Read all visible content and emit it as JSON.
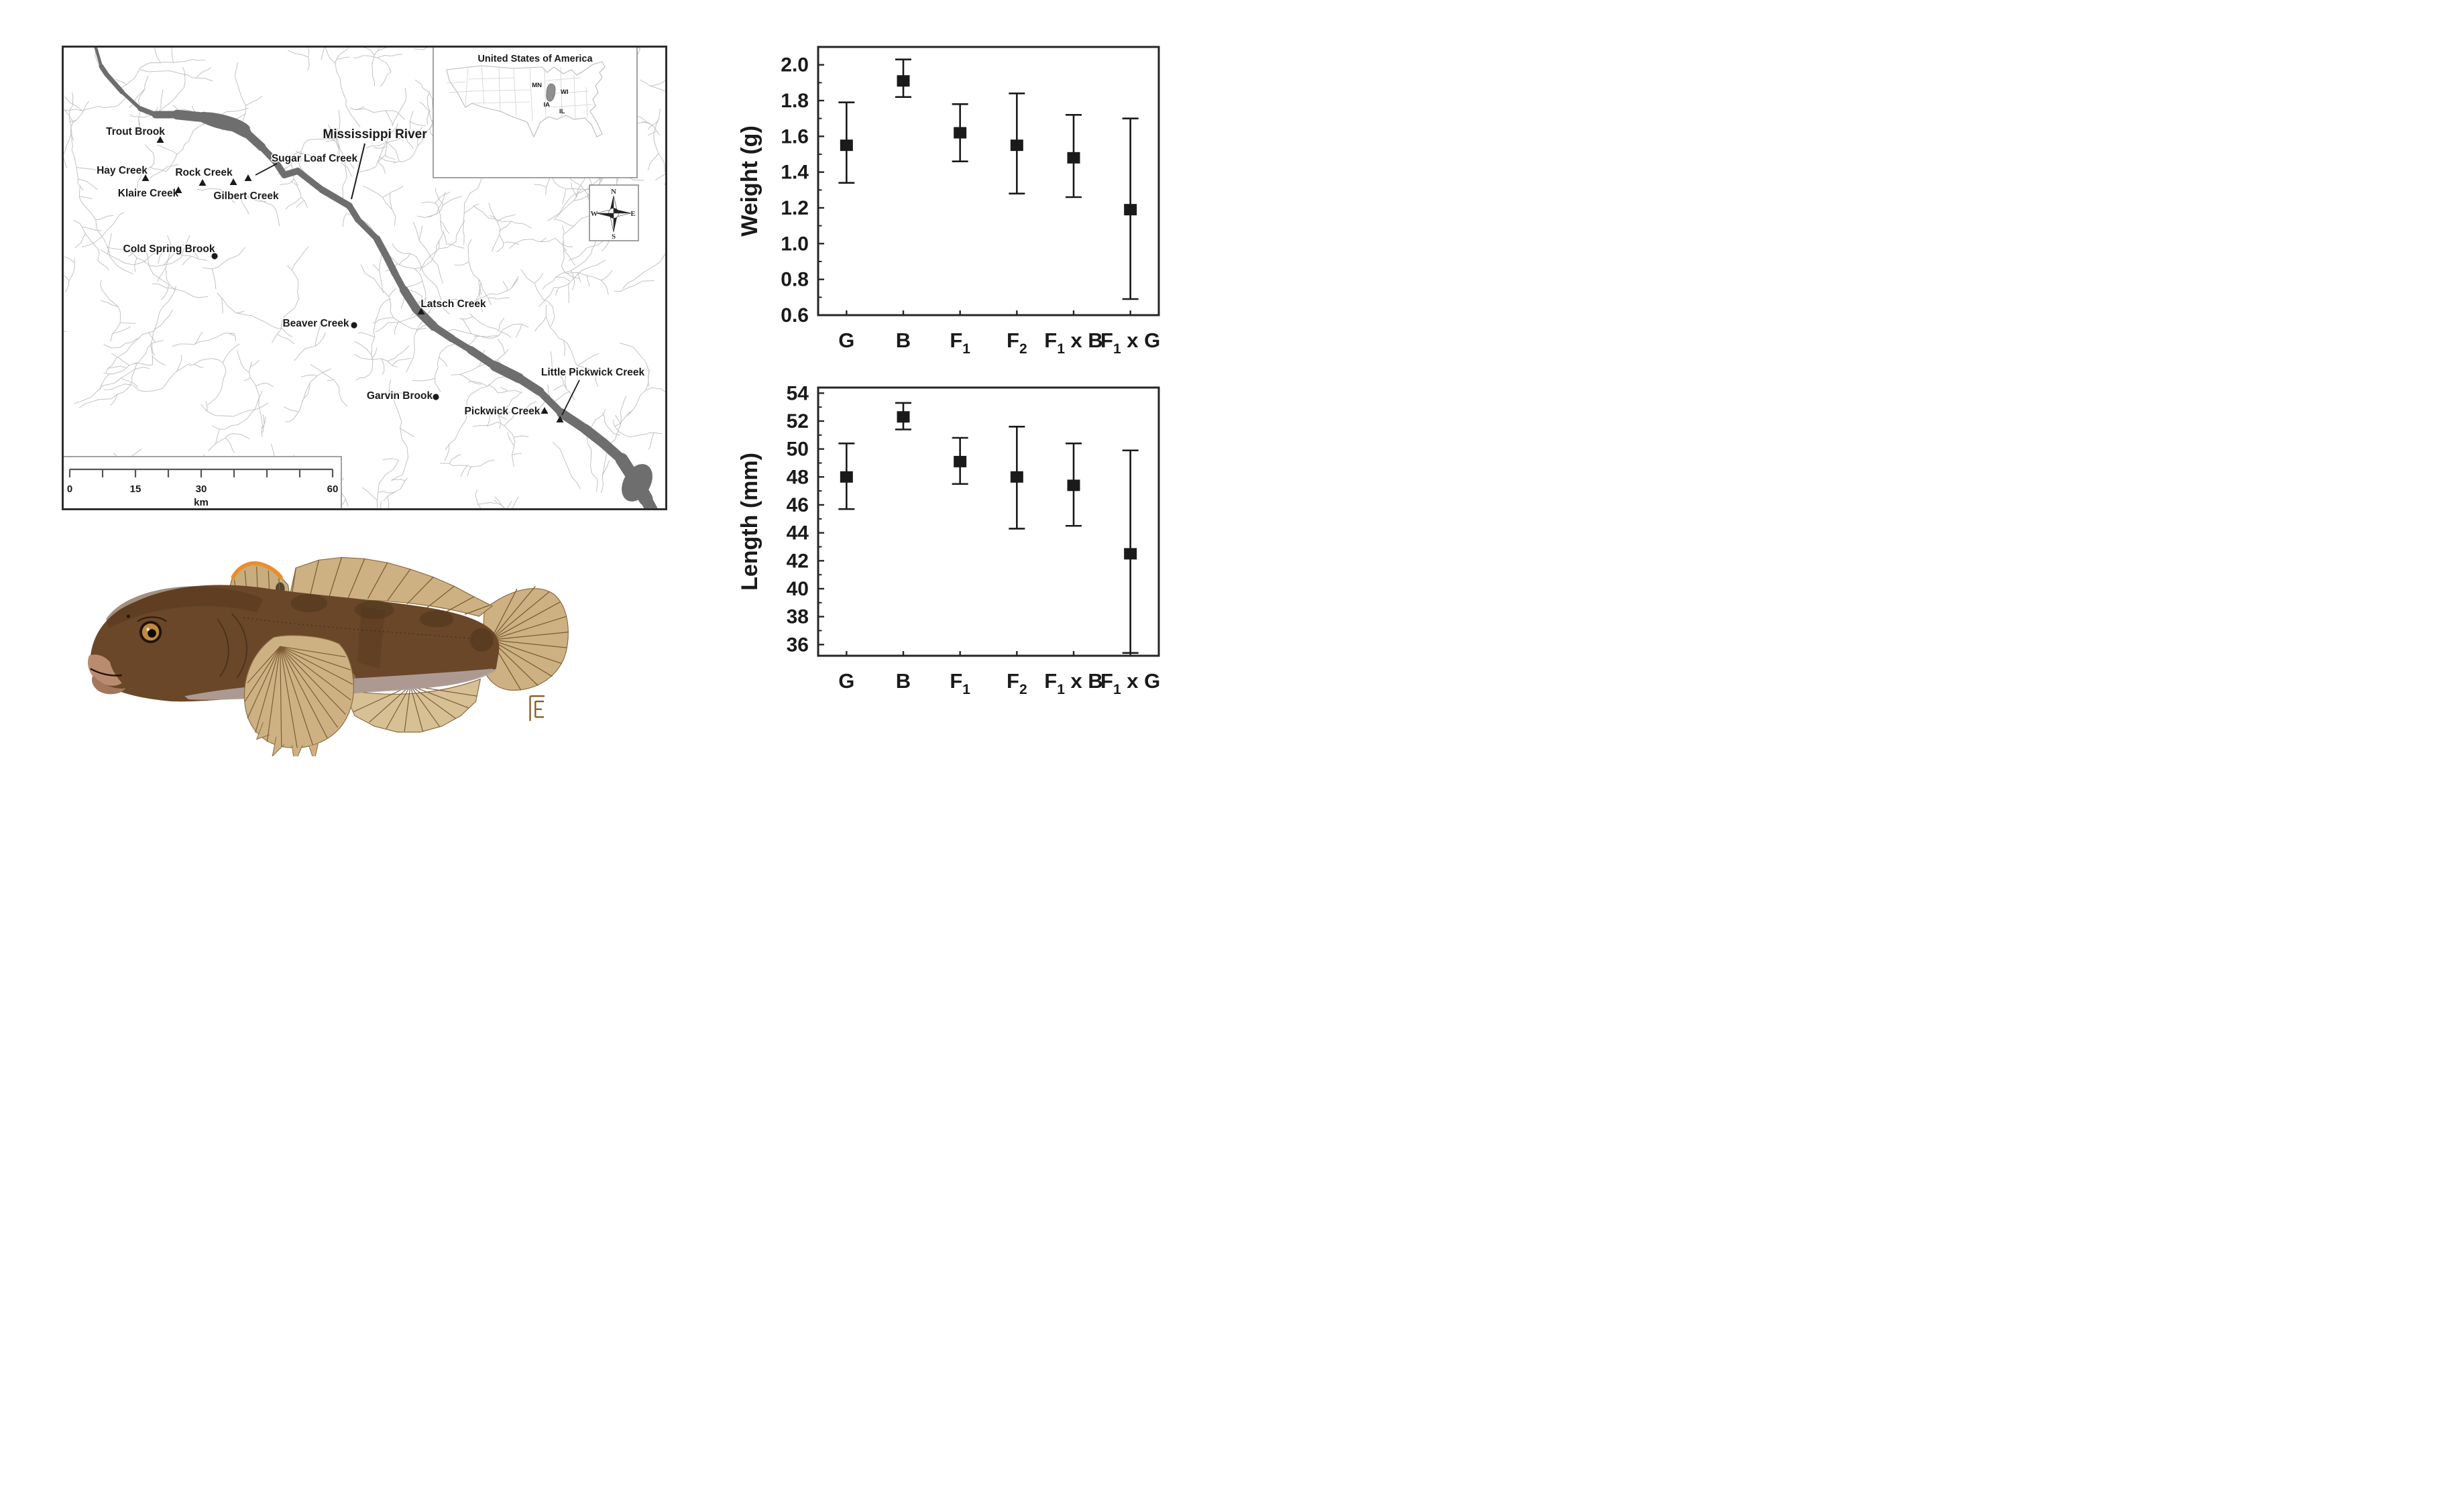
{
  "map": {
    "river_label": "Mississippi River",
    "sites": [
      {
        "name": "Trout Brook",
        "marker": "triangle"
      },
      {
        "name": "Hay Creek",
        "marker": "triangle"
      },
      {
        "name": "Rock Creek",
        "marker": "triangle"
      },
      {
        "name": "Sugar Loaf Creek",
        "marker": "triangle"
      },
      {
        "name": "Klaire Creek",
        "marker": "triangle"
      },
      {
        "name": "Gilbert Creek",
        "marker": "triangle"
      },
      {
        "name": "Cold Spring Brook",
        "marker": "circle"
      },
      {
        "name": "Latsch Creek",
        "marker": "triangle"
      },
      {
        "name": "Beaver Creek",
        "marker": "circle"
      },
      {
        "name": "Garvin Brook",
        "marker": "circle"
      },
      {
        "name": "Pickwick Creek",
        "marker": "triangle"
      },
      {
        "name": "Little Pickwick Creek",
        "marker": "triangle"
      }
    ],
    "inset": {
      "title": "United States of America",
      "states": [
        "MN",
        "WI",
        "IA",
        "IL"
      ],
      "highlight_color": "#8f8f8f"
    },
    "compass": {
      "n": "N",
      "e": "E",
      "s": "S",
      "w": "W"
    },
    "scale_bar": {
      "labels": [
        "0",
        "15",
        "30",
        "60"
      ],
      "unit": "km"
    },
    "colors": {
      "stream": "#c2c2c2",
      "river": "#6e6e6e",
      "marker": "#1a1a1a",
      "border": "#2e2e2e",
      "box_border": "#8a8a8a"
    }
  },
  "chart_data": [
    {
      "type": "scatter",
      "error_bars": true,
      "title": "",
      "xlabel": "",
      "ylabel": "Weight (g)",
      "ylim": [
        0.6,
        2.1
      ],
      "yticks": [
        0.6,
        0.8,
        1.0,
        1.2,
        1.4,
        1.6,
        1.8,
        2.0
      ],
      "ytick_decimals": 1,
      "minor_ticks": [
        0.7,
        0.9,
        1.1,
        1.3,
        1.5,
        1.7,
        1.9
      ],
      "categories": [
        {
          "base": "G",
          "sub": "",
          "rest": ""
        },
        {
          "base": "B",
          "sub": "",
          "rest": ""
        },
        {
          "base": "F",
          "sub": "1",
          "rest": ""
        },
        {
          "base": "F",
          "sub": "2",
          "rest": ""
        },
        {
          "base": "F",
          "sub": "1",
          "rest": " x B"
        },
        {
          "base": "F",
          "sub": "1",
          "rest": " x G"
        }
      ],
      "means": [
        1.55,
        1.91,
        1.62,
        1.55,
        1.48,
        1.19
      ],
      "err_low": [
        1.34,
        1.82,
        1.46,
        1.28,
        1.26,
        0.69
      ],
      "err_high": [
        1.79,
        2.03,
        1.78,
        1.84,
        1.72,
        1.7
      ],
      "legend": null,
      "grid": false
    },
    {
      "type": "scatter",
      "error_bars": true,
      "title": "",
      "xlabel": "",
      "ylabel": "Length (mm)",
      "ylim": [
        35.2,
        54.4
      ],
      "yticks": [
        36,
        38,
        40,
        42,
        44,
        46,
        48,
        50,
        52,
        54
      ],
      "ytick_decimals": 0,
      "minor_ticks": [
        37,
        39,
        41,
        43,
        45,
        47,
        49,
        51,
        53
      ],
      "categories": [
        {
          "base": "G",
          "sub": "",
          "rest": ""
        },
        {
          "base": "B",
          "sub": "",
          "rest": ""
        },
        {
          "base": "F",
          "sub": "1",
          "rest": ""
        },
        {
          "base": "F",
          "sub": "2",
          "rest": ""
        },
        {
          "base": "F",
          "sub": "1",
          "rest": " x B"
        },
        {
          "base": "F",
          "sub": "1",
          "rest": " x G"
        }
      ],
      "means": [
        48.0,
        52.3,
        49.1,
        48.0,
        47.4,
        42.5
      ],
      "err_low": [
        45.7,
        51.4,
        47.5,
        44.3,
        44.5,
        35.4
      ],
      "err_high": [
        50.4,
        53.3,
        50.8,
        51.6,
        50.4,
        49.9
      ],
      "legend": null,
      "grid": false
    }
  ],
  "fish": {
    "monogram": "E",
    "palette": {
      "body": "#6a4729",
      "head_shade": "#56371c",
      "mottle": "#4c3319",
      "belly": "#b2a29b",
      "fin": "#cdb183",
      "fin_ray": "#7c5b33",
      "dorsal_orange": "#ec8d2c",
      "eye_iris": "#c08a3e",
      "lips": "#b98c70",
      "monogram_color": "#8a5a20"
    }
  }
}
